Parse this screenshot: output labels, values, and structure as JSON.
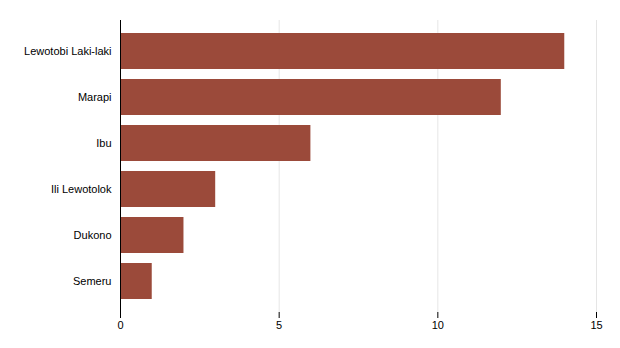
{
  "chart_data": {
    "type": "bar",
    "orientation": "horizontal",
    "categories": [
      "Semeru",
      "Dukono",
      "Ili Lewotolok",
      "Ibu",
      "Marapi",
      "Lewotobi Laki-laki"
    ],
    "values": [
      1,
      2,
      3,
      6,
      12,
      14
    ],
    "color": "#9b4a3a",
    "xlim": [
      0,
      15
    ],
    "xticks": [
      0,
      5,
      10,
      15
    ],
    "grid": true
  }
}
